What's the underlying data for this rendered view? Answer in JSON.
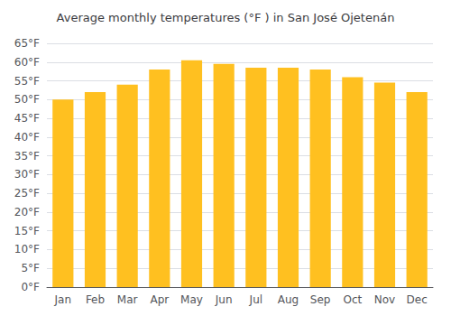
{
  "chart_data": {
    "type": "bar",
    "title": "Average monthly temperatures (°F ) in San José Ojetenán",
    "categories": [
      "Jan",
      "Feb",
      "Mar",
      "Apr",
      "May",
      "Jun",
      "Jul",
      "Aug",
      "Sep",
      "Oct",
      "Nov",
      "Dec"
    ],
    "values": [
      50,
      52,
      54,
      58,
      60.5,
      59.5,
      58.5,
      58.5,
      58,
      56,
      54.5,
      52
    ],
    "color": "#FFC020",
    "ylim": [
      0,
      65
    ],
    "yticks": [
      {
        "value": 0,
        "label": "0°F"
      },
      {
        "value": 5,
        "label": "5°F"
      },
      {
        "value": 10,
        "label": "10°F"
      },
      {
        "value": 15,
        "label": "15°F"
      },
      {
        "value": 20,
        "label": "20°F"
      },
      {
        "value": 25,
        "label": "25°F"
      },
      {
        "value": 30,
        "label": "30°F"
      },
      {
        "value": 35,
        "label": "35°F"
      },
      {
        "value": 40,
        "label": "40°F"
      },
      {
        "value": 45,
        "label": "45°F"
      },
      {
        "value": 50,
        "label": "50°F"
      },
      {
        "value": 55,
        "label": "55°F"
      },
      {
        "value": 60,
        "label": "60°F"
      },
      {
        "value": 65,
        "label": "65°F"
      }
    ],
    "grid": true
  }
}
